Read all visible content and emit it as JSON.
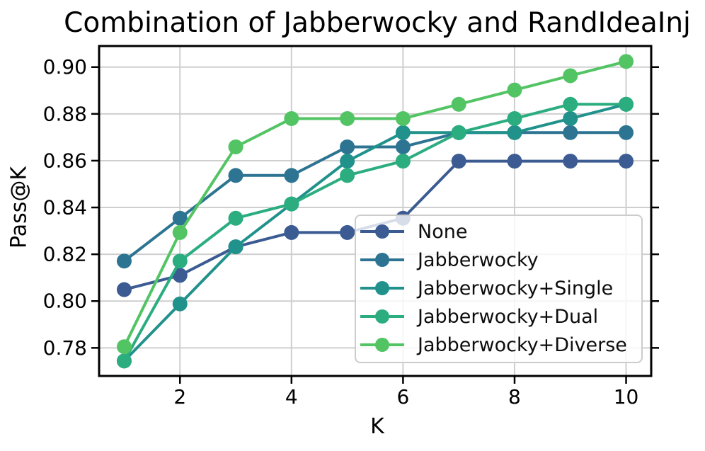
{
  "chart_data": {
    "type": "line",
    "title": "Combination of Jabberwocky and RandIdeaInj",
    "xlabel": "K",
    "ylabel": "Pass@K",
    "x": [
      1,
      2,
      3,
      4,
      5,
      6,
      7,
      8,
      9,
      10
    ],
    "xticks": [
      2,
      4,
      6,
      8,
      10
    ],
    "yticks": [
      0.78,
      0.8,
      0.82,
      0.84,
      0.86,
      0.88,
      0.9
    ],
    "xlim": [
      0.55,
      10.45
    ],
    "ylim": [
      0.768,
      0.909
    ],
    "grid": true,
    "grid_color": "#cfcfcf",
    "legend_position": "lower right",
    "marker": "circle",
    "series": [
      {
        "name": "None",
        "color": "#3b5b92",
        "values": [
          0.8049,
          0.811,
          0.8232,
          0.8293,
          0.8293,
          0.8354,
          0.8598,
          0.8598,
          0.8598,
          0.8598
        ]
      },
      {
        "name": "Jabberwocky",
        "color": "#2d7492",
        "values": [
          0.8171,
          0.8354,
          0.8537,
          0.8537,
          0.8659,
          0.8659,
          0.872,
          0.872,
          0.872,
          0.872
        ]
      },
      {
        "name": "Jabberwocky+Single",
        "color": "#21918c",
        "values": [
          0.7744,
          0.7988,
          0.8232,
          0.8415,
          0.8598,
          0.872,
          0.872,
          0.872,
          0.878,
          0.8841
        ]
      },
      {
        "name": "Jabberwocky+Dual",
        "color": "#2bad80",
        "values": [
          0.7744,
          0.8171,
          0.8354,
          0.8415,
          0.8537,
          0.8598,
          0.872,
          0.878,
          0.8841,
          0.8841
        ]
      },
      {
        "name": "Jabberwocky+Diverse",
        "color": "#53c464",
        "values": [
          0.7805,
          0.8293,
          0.8659,
          0.878,
          0.878,
          0.878,
          0.8841,
          0.8902,
          0.8963,
          0.9024
        ]
      }
    ]
  }
}
